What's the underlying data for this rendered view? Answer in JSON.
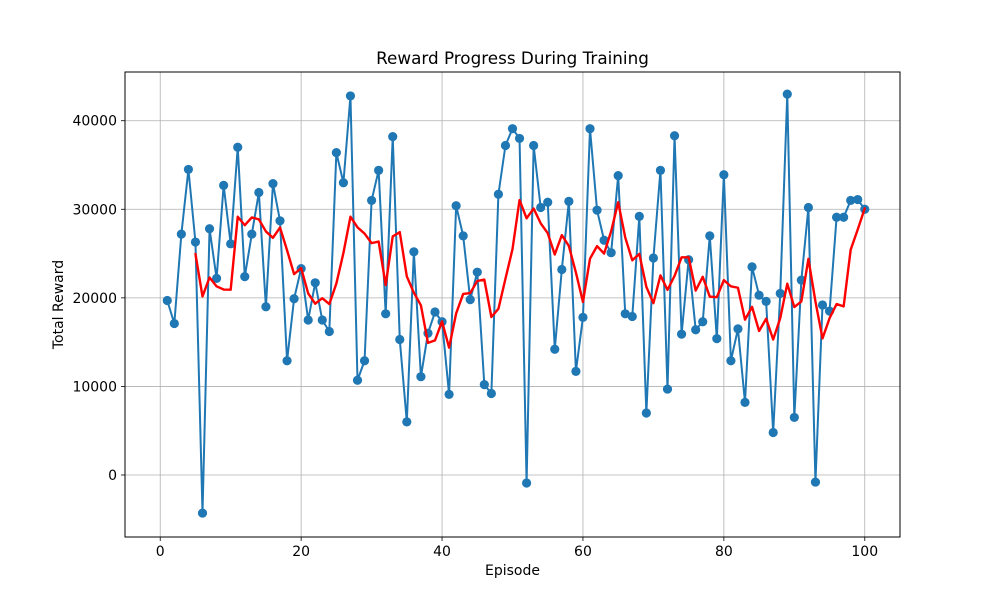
{
  "chart_data": {
    "type": "line",
    "title": "Reward Progress During Training",
    "xlabel": "Episode",
    "ylabel": "Total Reward",
    "xlim": [
      -5,
      105
    ],
    "ylim": [
      -7000,
      45500
    ],
    "xticks": [
      0,
      20,
      40,
      60,
      80,
      100
    ],
    "yticks": [
      0,
      10000,
      20000,
      30000,
      40000
    ],
    "xtick_labels": [
      "0",
      "20",
      "40",
      "60",
      "80",
      "100"
    ],
    "ytick_labels": [
      "0",
      "10000",
      "20000",
      "30000",
      "40000"
    ],
    "grid": true,
    "series": [
      {
        "color": "#1f77b4",
        "marker": "circle",
        "x": [
          1,
          2,
          3,
          4,
          5,
          6,
          7,
          8,
          9,
          10,
          11,
          12,
          13,
          14,
          15,
          16,
          17,
          18,
          19,
          20,
          21,
          22,
          23,
          24,
          25,
          26,
          27,
          28,
          29,
          30,
          31,
          32,
          33,
          34,
          35,
          36,
          37,
          38,
          39,
          40,
          41,
          42,
          43,
          44,
          45,
          46,
          47,
          48,
          49,
          50,
          51,
          52,
          53,
          54,
          55,
          56,
          57,
          58,
          59,
          60,
          61,
          62,
          63,
          64,
          65,
          66,
          67,
          68,
          69,
          70,
          71,
          72,
          73,
          74,
          75,
          76,
          77,
          78,
          79,
          80,
          81,
          82,
          83,
          84,
          85,
          86,
          87,
          88,
          89,
          90,
          91,
          92,
          93,
          94,
          95,
          96,
          97,
          98,
          99,
          100
        ],
        "values": [
          19700,
          17100,
          27200,
          34500,
          26300,
          -4300,
          27800,
          22200,
          32700,
          26100,
          37000,
          22400,
          27200,
          31900,
          19000,
          32900,
          28700,
          12900,
          19900,
          23300,
          17500,
          21700,
          17500,
          16200,
          36400,
          33000,
          42800,
          10700,
          12900,
          31000,
          34400,
          18200,
          38200,
          15300,
          6000,
          25200,
          11100,
          16000,
          18400,
          17300,
          9100,
          30400,
          27000,
          19800,
          22900,
          10200,
          9200,
          31700,
          37200,
          39100,
          38000,
          -900,
          37200,
          30200,
          30800,
          14200,
          23200,
          30900,
          11700,
          17800,
          39100,
          29900,
          26500,
          25100,
          33800,
          18200,
          17900,
          29200,
          7000,
          24500,
          34400,
          9700,
          38300,
          15900,
          24300,
          16400,
          17300,
          27000,
          15400,
          33900,
          12900,
          16500,
          8200,
          23500,
          20300,
          19600,
          4800,
          20500,
          43000,
          6500,
          22000,
          30200,
          -800,
          19200,
          18500,
          29100,
          29100,
          31000,
          31100,
          30000
        ]
      },
      {
        "color": "#ff0000",
        "marker": "none",
        "x": [
          5,
          6,
          7,
          8,
          9,
          10,
          11,
          12,
          13,
          14,
          15,
          16,
          17,
          18,
          19,
          20,
          21,
          22,
          23,
          24,
          25,
          26,
          27,
          28,
          29,
          30,
          31,
          32,
          33,
          34,
          35,
          36,
          37,
          38,
          39,
          40,
          41,
          42,
          43,
          44,
          45,
          46,
          47,
          48,
          49,
          50,
          51,
          52,
          53,
          54,
          55,
          56,
          57,
          58,
          59,
          60,
          61,
          62,
          63,
          64,
          65,
          66,
          67,
          68,
          69,
          70,
          71,
          72,
          73,
          74,
          75,
          76,
          77,
          78,
          79,
          80,
          81,
          82,
          83,
          84,
          85,
          86,
          87,
          88,
          89,
          90,
          91,
          92,
          93,
          94,
          95,
          96,
          97,
          98,
          99,
          100
        ],
        "values": [
          24960,
          20160,
          22300,
          21300,
          20940,
          20920,
          29160,
          28200,
          29080,
          28860,
          27500,
          26780,
          27940,
          25380,
          22680,
          23360,
          20500,
          19340,
          19960,
          19300,
          21620,
          25060,
          29160,
          27960,
          27260,
          26180,
          26360,
          21440,
          26940,
          27420,
          22420,
          20580,
          19160,
          14920,
          15200,
          17340,
          14380,
          18240,
          20440,
          20540,
          21900,
          22060,
          17840,
          18760,
          22160,
          25500,
          31040,
          28980,
          30080,
          28420,
          27300,
          24900,
          27080,
          25860,
          22860,
          19540,
          24420,
          25840,
          25000,
          27520,
          30800,
          26820,
          24240,
          24960,
          21240,
          19400,
          22540,
          20900,
          22480,
          24580,
          24580,
          20820,
          22380,
          20140,
          20080,
          22000,
          21300,
          21140,
          17540,
          18980,
          16260,
          17640,
          15300,
          17700,
          21600,
          18960,
          19600,
          24400,
          19580,
          15420,
          17700,
          19300,
          19040,
          25440,
          27720,
          30100
        ]
      }
    ]
  }
}
